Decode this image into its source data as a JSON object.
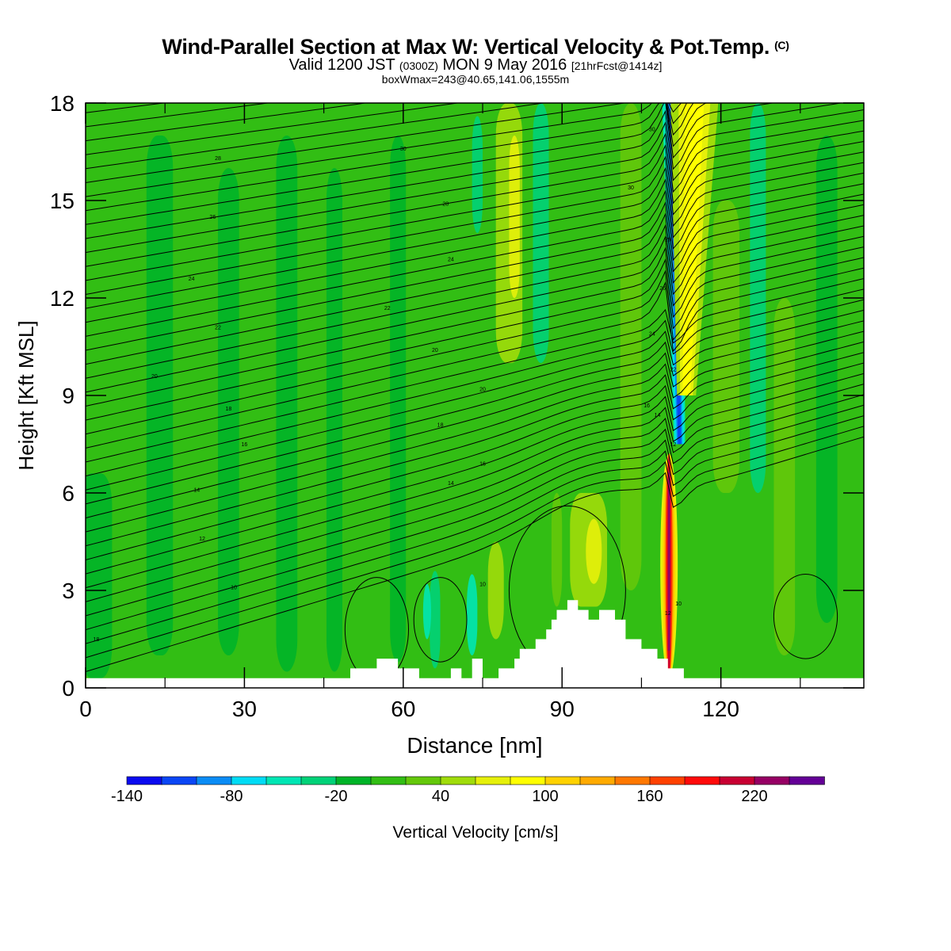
{
  "header": {
    "title": "Wind-Parallel Section at Max W: Vertical Velocity & Pot.Temp.",
    "title_tag": "(C)",
    "subtitle_main_a": "Valid 1200 JST",
    "subtitle_small_a": "(0300Z)",
    "subtitle_main_b": "MON 9 May 2016",
    "subtitle_small_b": "[21hrFcst@1414z]",
    "subsubtitle": "boxWmax=243@40.65,141.06,1555m"
  },
  "chart_data": {
    "type": "heatmap",
    "xlabel": "Distance [nm]",
    "ylabel": "Height [Kft MSL]",
    "xlim": [
      0,
      147
    ],
    "ylim": [
      0,
      18
    ],
    "xticks": [
      0,
      30,
      60,
      90,
      120
    ],
    "yticks": [
      0,
      3,
      6,
      9,
      12,
      15,
      18
    ],
    "colorbar": {
      "label": "Vertical Velocity [cm/s]",
      "tick_labels": [
        "-140",
        "-80",
        "-20",
        "40",
        "100",
        "160",
        "220"
      ],
      "levels": [
        -140,
        -120,
        -100,
        -80,
        -60,
        -40,
        -20,
        0,
        20,
        40,
        60,
        80,
        100,
        120,
        140,
        160,
        180,
        200,
        220,
        240
      ],
      "colors": [
        "#0a0af0",
        "#0a46f5",
        "#0a8cf5",
        "#00dcf5",
        "#00e6b4",
        "#00d278",
        "#00b428",
        "#32be14",
        "#64c80a",
        "#a0dc0a",
        "#e6f00a",
        "#ffff00",
        "#ffd200",
        "#ffaa00",
        "#ff7800",
        "#ff4100",
        "#ff0a0a",
        "#c80032",
        "#960064",
        "#640096"
      ]
    },
    "terrain_kft": [
      [
        0,
        0.3
      ],
      [
        50,
        0.3
      ],
      [
        50,
        0.6
      ],
      [
        55,
        0.6
      ],
      [
        55,
        0.9
      ],
      [
        59,
        0.9
      ],
      [
        59,
        0.6
      ],
      [
        63,
        0.6
      ],
      [
        63,
        0.3
      ],
      [
        69,
        0.3
      ],
      [
        69,
        0.6
      ],
      [
        71,
        0.6
      ],
      [
        71,
        0.3
      ],
      [
        73,
        0.3
      ],
      [
        73,
        0.9
      ],
      [
        75,
        0.9
      ],
      [
        75,
        0.3
      ],
      [
        78,
        0.3
      ],
      [
        78,
        0.6
      ],
      [
        81,
        0.6
      ],
      [
        81,
        0.9
      ],
      [
        82,
        0.9
      ],
      [
        82,
        1.2
      ],
      [
        85,
        1.2
      ],
      [
        85,
        1.5
      ],
      [
        87,
        1.5
      ],
      [
        87,
        1.8
      ],
      [
        88,
        1.8
      ],
      [
        88,
        2.1
      ],
      [
        89,
        2.1
      ],
      [
        89,
        2.4
      ],
      [
        91,
        2.4
      ],
      [
        91,
        2.7
      ],
      [
        93,
        2.7
      ],
      [
        93,
        2.4
      ],
      [
        95,
        2.4
      ],
      [
        95,
        2.1
      ],
      [
        97,
        2.1
      ],
      [
        97,
        2.4
      ],
      [
        100,
        2.4
      ],
      [
        100,
        2.1
      ],
      [
        102,
        2.1
      ],
      [
        102,
        1.5
      ],
      [
        105,
        1.5
      ],
      [
        105,
        1.2
      ],
      [
        108,
        1.2
      ],
      [
        108,
        0.9
      ],
      [
        110,
        0.9
      ],
      [
        110,
        0.6
      ],
      [
        113,
        0.6
      ],
      [
        113,
        0.3
      ],
      [
        147,
        0.3
      ]
    ],
    "features": [
      {
        "kind": "updraft",
        "value": 243,
        "x": 110.2,
        "y_kft": [
          0.9,
          7.6
        ]
      },
      {
        "kind": "downdraft",
        "value": -120,
        "x": 111.0,
        "y_kft": [
          7.5,
          18
        ]
      },
      {
        "kind": "ascent_band",
        "value": 60,
        "x": 115,
        "y_kft": [
          9,
          18
        ]
      }
    ],
    "isentrope_labels": [
      {
        "text": "28",
        "x": 25,
        "y": 16.3
      },
      {
        "text": "26",
        "x": 24,
        "y": 14.5
      },
      {
        "text": "24",
        "x": 20,
        "y": 12.6
      },
      {
        "text": "22",
        "x": 25,
        "y": 11.1
      },
      {
        "text": "20",
        "x": 13,
        "y": 9.6
      },
      {
        "text": "18",
        "x": 27,
        "y": 8.6
      },
      {
        "text": "16",
        "x": 30,
        "y": 7.5
      },
      {
        "text": "14",
        "x": 21,
        "y": 6.1
      },
      {
        "text": "12",
        "x": 22,
        "y": 4.6
      },
      {
        "text": "10",
        "x": 28,
        "y": 3.1
      },
      {
        "text": "18",
        "x": 2,
        "y": 1.5
      },
      {
        "text": "30",
        "x": 60,
        "y": 16.6
      },
      {
        "text": "28",
        "x": 68,
        "y": 14.9
      },
      {
        "text": "24",
        "x": 69,
        "y": 13.2
      },
      {
        "text": "22",
        "x": 57,
        "y": 11.7
      },
      {
        "text": "20",
        "x": 66,
        "y": 10.4
      },
      {
        "text": "20",
        "x": 75,
        "y": 9.2
      },
      {
        "text": "18",
        "x": 67,
        "y": 8.1
      },
      {
        "text": "16",
        "x": 75,
        "y": 6.9
      },
      {
        "text": "14",
        "x": 69,
        "y": 6.3
      },
      {
        "text": "10",
        "x": 75,
        "y": 3.2
      },
      {
        "text": "30",
        "x": 107,
        "y": 17.2
      },
      {
        "text": "30",
        "x": 103,
        "y": 15.4
      },
      {
        "text": "28",
        "x": 110,
        "y": 13.8
      },
      {
        "text": "26",
        "x": 109,
        "y": 12.3
      },
      {
        "text": "24",
        "x": 107,
        "y": 10.9
      },
      {
        "text": "22",
        "x": 111,
        "y": 9.8
      },
      {
        "text": "16",
        "x": 106,
        "y": 8.7
      },
      {
        "text": "14",
        "x": 108,
        "y": 8.4
      },
      {
        "text": "12",
        "x": 111,
        "y": 7.5
      },
      {
        "text": "12",
        "x": 110,
        "y": 2.3
      },
      {
        "text": "10",
        "x": 112,
        "y": 2.6
      }
    ]
  }
}
